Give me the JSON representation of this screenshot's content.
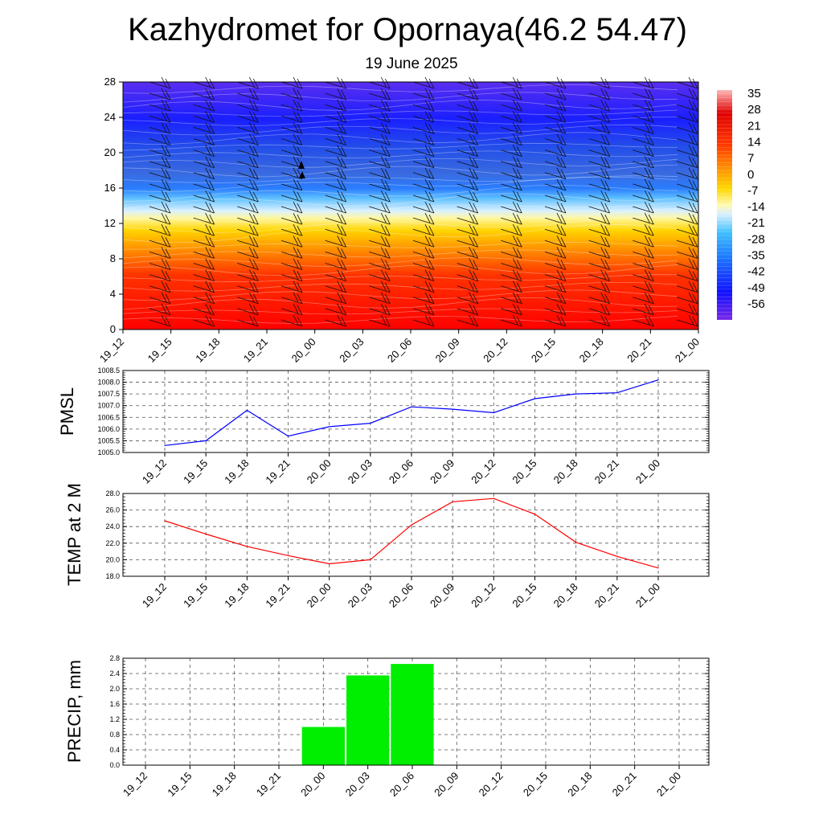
{
  "header": {
    "title": "Kazhydromet for Opornaya(46.2 54.47)",
    "subtitle": "19 June 2025"
  },
  "colors": {
    "pmsl_line": "#0000ff",
    "temp_line": "#ff0000",
    "precip_bar": "#00ee00"
  },
  "chart_data": [
    {
      "type": "heatmap",
      "name": "vertical-cross-section",
      "x_categories": [
        "19_12",
        "19_15",
        "19_18",
        "19_21",
        "20_00",
        "20_03",
        "20_06",
        "20_09",
        "20_12",
        "20_15",
        "20_18",
        "20_21",
        "21_00"
      ],
      "y_ticks": [
        0,
        4,
        8,
        12,
        16,
        20,
        24,
        28
      ],
      "ylim": [
        0,
        28
      ],
      "colorbar": {
        "labels": [
          "35",
          "28",
          "21",
          "14",
          "7",
          "0",
          "-7",
          "-14",
          "-21",
          "-28",
          "-35",
          "-42",
          "-49",
          "-56"
        ],
        "range": [
          -60,
          40
        ]
      },
      "overlay": "wind-barbs"
    },
    {
      "type": "line",
      "ylabel": "PMSL",
      "categories": [
        "19_12",
        "19_15",
        "19_18",
        "19_21",
        "20_00",
        "20_03",
        "20_06",
        "20_09",
        "20_12",
        "20_15",
        "20_18",
        "20_21",
        "21_00"
      ],
      "values": [
        1005.3,
        1005.5,
        1006.8,
        1005.7,
        1006.1,
        1006.25,
        1006.95,
        1006.85,
        1006.7,
        1007.3,
        1007.5,
        1007.55,
        1008.1
      ],
      "ylim": [
        1005.0,
        1008.5
      ],
      "y_ticks": [
        "1005.0",
        "1005.5",
        "1006.0",
        "1006.5",
        "1007.0",
        "1007.5",
        "1008.0",
        "1008.5"
      ],
      "grid": true
    },
    {
      "type": "line",
      "ylabel": "TEMP at 2 M",
      "categories": [
        "19_12",
        "19_15",
        "19_18",
        "19_21",
        "20_00",
        "20_03",
        "20_06",
        "20_09",
        "20_12",
        "20_15",
        "20_18",
        "20_21",
        "21_00"
      ],
      "values": [
        24.7,
        23.1,
        21.6,
        20.5,
        19.5,
        20.0,
        24.2,
        27.0,
        27.4,
        25.5,
        22.1,
        20.4,
        19.0
      ],
      "ylim": [
        18.0,
        28.0
      ],
      "y_ticks": [
        "18.0",
        "20.0",
        "22.0",
        "24.0",
        "26.0",
        "28.0"
      ],
      "grid": true
    },
    {
      "type": "bar",
      "ylabel": "PRECIP, mm",
      "categories": [
        "19_12",
        "19_15",
        "19_18",
        "19_21",
        "20_00",
        "20_03",
        "20_06",
        "20_09",
        "20_12",
        "20_15",
        "20_18",
        "20_21",
        "21_00"
      ],
      "values": [
        0,
        0,
        0,
        0,
        1.0,
        2.35,
        2.65,
        0,
        0,
        0,
        0,
        0,
        0
      ],
      "ylim": [
        0,
        2.8
      ],
      "y_ticks": [
        "0.0",
        "0.4",
        "0.8",
        "1.2",
        "1.6",
        "2.0",
        "2.4",
        "2.8"
      ],
      "grid": true
    }
  ]
}
